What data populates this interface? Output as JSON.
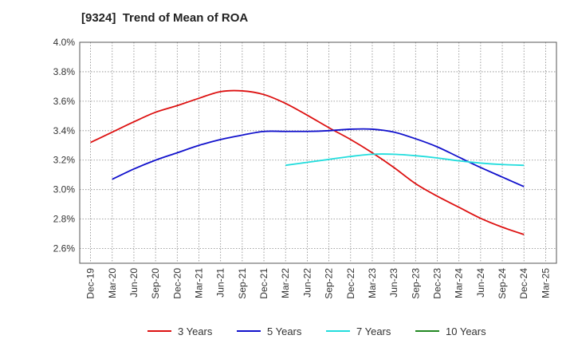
{
  "chart_data": {
    "type": "line",
    "title": "[9324]  Trend of Mean of ROA",
    "xlabel": "",
    "ylabel": "",
    "x_ticks": [
      "Dec-19",
      "Mar-20",
      "Jun-20",
      "Sep-20",
      "Dec-20",
      "Mar-21",
      "Jun-21",
      "Sep-21",
      "Dec-21",
      "Mar-22",
      "Jun-22",
      "Sep-22",
      "Dec-22",
      "Mar-23",
      "Jun-23",
      "Sep-23",
      "Dec-23",
      "Mar-24",
      "Jun-24",
      "Sep-24",
      "Dec-24",
      "Mar-25"
    ],
    "y_ticks": [
      "2.6%",
      "2.8%",
      "3.0%",
      "3.2%",
      "3.4%",
      "3.6%",
      "3.8%",
      "4.0%"
    ],
    "y_tick_values": [
      2.6,
      2.8,
      3.0,
      3.2,
      3.4,
      3.6,
      3.8,
      4.0
    ],
    "ylim": [
      2.5,
      4.0
    ],
    "grid": true,
    "legend_position": "bottom",
    "series": [
      {
        "name": "3 Years",
        "color": "#dd1111",
        "x": [
          "Dec-19",
          "Mar-20",
          "Jun-20",
          "Sep-20",
          "Dec-20",
          "Mar-21",
          "Jun-21",
          "Sep-21",
          "Dec-21",
          "Mar-22",
          "Jun-22",
          "Sep-22",
          "Dec-22",
          "Mar-23",
          "Jun-23",
          "Sep-23",
          "Dec-23",
          "Mar-24",
          "Jun-24",
          "Sep-24",
          "Dec-24"
        ],
        "values": [
          3.32,
          3.39,
          3.46,
          3.525,
          3.57,
          3.62,
          3.665,
          3.67,
          3.645,
          3.585,
          3.505,
          3.42,
          3.34,
          3.25,
          3.15,
          3.04,
          2.955,
          2.88,
          2.805,
          2.745,
          2.695
        ]
      },
      {
        "name": "5 Years",
        "color": "#1111cc",
        "x": [
          "Mar-20",
          "Jun-20",
          "Sep-20",
          "Dec-20",
          "Mar-21",
          "Jun-21",
          "Sep-21",
          "Dec-21",
          "Mar-22",
          "Jun-22",
          "Sep-22",
          "Dec-22",
          "Mar-23",
          "Jun-23",
          "Sep-23",
          "Dec-23",
          "Mar-24",
          "Jun-24",
          "Sep-24",
          "Dec-24"
        ],
        "values": [
          3.07,
          3.14,
          3.2,
          3.25,
          3.3,
          3.34,
          3.37,
          3.395,
          3.395,
          3.395,
          3.4,
          3.41,
          3.41,
          3.39,
          3.345,
          3.29,
          3.22,
          3.15,
          3.085,
          3.02
        ]
      },
      {
        "name": "7 Years",
        "color": "#22dddd",
        "x": [
          "Mar-22",
          "Jun-22",
          "Sep-22",
          "Dec-22",
          "Mar-23",
          "Jun-23",
          "Sep-23",
          "Dec-23",
          "Mar-24",
          "Jun-24",
          "Sep-24",
          "Dec-24"
        ],
        "values": [
          3.165,
          3.185,
          3.205,
          3.225,
          3.24,
          3.24,
          3.23,
          3.215,
          3.195,
          3.18,
          3.17,
          3.165
        ]
      },
      {
        "name": "10 Years",
        "color": "#228822",
        "x": [],
        "values": []
      }
    ]
  }
}
